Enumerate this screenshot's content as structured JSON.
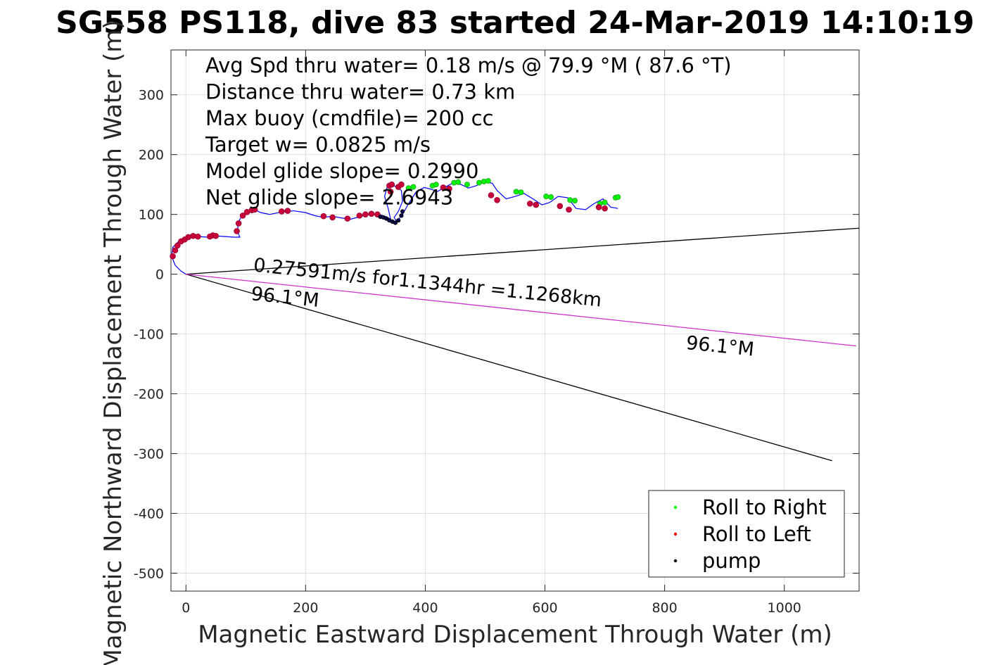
{
  "chart_data": {
    "type": "line",
    "title": "SG558 PS118, dive 83 started 24-Mar-2019 14:10:19",
    "xlabel": "Magnetic Eastward Displacement Through Water (m)",
    "ylabel": "Magnetic Northward Displacement Through Water (m)",
    "xlim": [
      -25,
      1125
    ],
    "ylim": [
      -530,
      375
    ],
    "xticks": [
      0,
      200,
      400,
      600,
      800,
      1000
    ],
    "xtick_labels": [
      "0",
      "200",
      "400",
      "600",
      "800",
      "1000"
    ],
    "yticks": [
      -500,
      -400,
      -300,
      -200,
      -100,
      0,
      100,
      200,
      300
    ],
    "ytick_labels": [
      "-500",
      "-400",
      "-300",
      "-200",
      "-100",
      "0",
      "100",
      "200",
      "300"
    ],
    "grid": true,
    "stats": [
      "Avg Spd thru water=  0.18 m/s @  79.9 °M ( 87.6 °T)",
      "Distance thru water=  0.73 km",
      "Max buoy (cmdfile)= 200 cc",
      "Target w= 0.0825 m/s",
      "Model glide slope= 0.2990",
      "Net glide slope= 2.6943"
    ],
    "annotations": [
      {
        "text": "0.27591m/s for1.1344hr =1.1268km",
        "x": 112,
        "y": 5,
        "angle": 5.8
      },
      {
        "text": "96.1°M",
        "x": 108,
        "y": -43,
        "angle": 5.8
      },
      {
        "text": "96.1°M",
        "x": 835,
        "y": -125,
        "angle": 5.8
      }
    ],
    "track": {
      "x": [
        0,
        -8,
        -18,
        -24,
        -22,
        -12,
        0,
        10,
        22,
        35,
        50,
        65,
        80,
        90,
        86,
        88,
        95,
        105,
        115,
        125,
        140,
        160,
        180,
        200,
        215,
        230,
        245,
        260,
        275,
        290,
        305,
        320,
        335,
        342,
        338,
        332,
        336,
        348,
        360,
        362,
        355,
        348,
        352,
        362,
        372,
        385,
        398,
        410,
        420,
        432,
        445,
        460,
        472,
        485,
        500,
        512,
        520,
        535,
        550,
        565,
        580,
        595,
        608,
        622,
        638,
        652,
        668,
        682,
        697,
        710,
        722
      ],
      "y": [
        0,
        5,
        15,
        30,
        45,
        55,
        62,
        65,
        63,
        62,
        64,
        63,
        62,
        62,
        72,
        88,
        100,
        106,
        108,
        103,
        100,
        104,
        106,
        103,
        98,
        95,
        97,
        94,
        92,
        96,
        100,
        101,
        96,
        92,
        110,
        130,
        145,
        148,
        140,
        122,
        105,
        95,
        88,
        100,
        118,
        138,
        145,
        142,
        138,
        145,
        152,
        150,
        144,
        148,
        155,
        152,
        140,
        126,
        130,
        135,
        126,
        116,
        120,
        130,
        128,
        110,
        108,
        118,
        126,
        112,
        110
      ]
    },
    "ref_lines": [
      {
        "name": "",
        "color": "#000000",
        "x": [
          0,
          1125
        ],
        "y": [
          0,
          77
        ]
      },
      {
        "name": "",
        "color": "#000000",
        "x": [
          0,
          1080
        ],
        "y": [
          0,
          -312
        ]
      },
      {
        "name": "",
        "color": "#cc33cc",
        "x": [
          0,
          1120
        ],
        "y": [
          0,
          -120
        ]
      }
    ],
    "roll_right": {
      "x": [
        372,
        380,
        412,
        418,
        448,
        455,
        470,
        490,
        498,
        505,
        552,
        560,
        602,
        610,
        642,
        650,
        692,
        700,
        718,
        722
      ],
      "y": [
        144,
        146,
        148,
        150,
        153,
        154,
        150,
        153,
        155,
        156,
        138,
        137,
        130,
        129,
        124,
        123,
        118,
        120,
        128,
        129
      ]
    },
    "roll_left": {
      "x": [
        -22,
        -18,
        -14,
        -8,
        -2,
        4,
        12,
        20,
        40,
        45,
        50,
        85,
        88,
        95,
        102,
        110,
        115,
        160,
        170,
        230,
        245,
        270,
        290,
        300,
        310,
        320,
        340,
        344,
        342,
        355,
        360,
        430,
        440,
        510,
        520,
        575,
        585,
        625,
        640,
        690,
        700
      ],
      "y": [
        30,
        40,
        48,
        55,
        58,
        62,
        64,
        63,
        63,
        65,
        64,
        72,
        85,
        98,
        104,
        107,
        108,
        105,
        106,
        97,
        95,
        93,
        98,
        100,
        101,
        100,
        148,
        150,
        138,
        146,
        150,
        145,
        143,
        132,
        124,
        118,
        116,
        114,
        108,
        112,
        110
      ]
    },
    "pump": {
      "x": [
        325,
        330,
        335,
        340,
        345,
        350,
        355,
        360,
        362
      ],
      "y": [
        96,
        95,
        93,
        90,
        88,
        86,
        90,
        98,
        105
      ]
    },
    "legend": {
      "position": "bottom-right",
      "entries": [
        {
          "label": "Roll to Right",
          "color": "#00ff00"
        },
        {
          "label": "Roll to Left",
          "color": "#ff0000"
        },
        {
          "label": "pump",
          "color": "#000000"
        }
      ]
    },
    "colors": {
      "track": "#0000ff",
      "axes": "#262626",
      "grid": "#e0e0e0"
    }
  }
}
